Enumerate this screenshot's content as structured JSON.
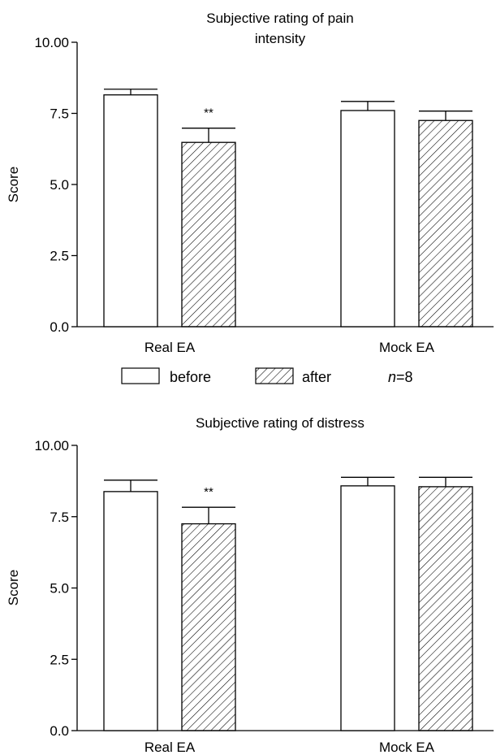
{
  "chart_data": [
    {
      "type": "bar",
      "title": "Subjective rating of pain intensity",
      "title_lines": [
        "Subjective rating of pain",
        "intensity"
      ],
      "ylabel": "Score",
      "xlabel": "",
      "ylim": [
        0,
        10
      ],
      "yticks": [
        "0.0",
        "2.5",
        "5.0",
        "7.5",
        "10.00"
      ],
      "ytick_values": [
        0,
        2.5,
        5,
        7.5,
        10
      ],
      "categories": [
        "Real EA",
        "Mock EA"
      ],
      "series": [
        {
          "name": "before",
          "values": [
            8.15,
            7.6
          ],
          "errors": [
            0.2,
            0.32
          ]
        },
        {
          "name": "after",
          "values": [
            6.48,
            7.25
          ],
          "errors": [
            0.5,
            0.33
          ]
        }
      ],
      "annotations": [
        {
          "category": "Real EA",
          "series": "after",
          "text": "**"
        }
      ]
    },
    {
      "type": "bar",
      "title": "Subjective rating of distress",
      "title_lines": [
        "Subjective rating of distress"
      ],
      "ylabel": "Score",
      "xlabel": "",
      "ylim": [
        0,
        10
      ],
      "yticks": [
        "0.0",
        "2.5",
        "5.0",
        "7.5",
        "10.00"
      ],
      "ytick_values": [
        0,
        2.5,
        5,
        7.5,
        10
      ],
      "categories": [
        "Real EA",
        "Mock EA"
      ],
      "series": [
        {
          "name": "before",
          "values": [
            8.38,
            8.58
          ],
          "errors": [
            0.4,
            0.3
          ]
        },
        {
          "name": "after",
          "values": [
            7.25,
            8.55
          ],
          "errors": [
            0.58,
            0.33
          ]
        }
      ],
      "annotations": [
        {
          "category": "Real EA",
          "series": "after",
          "text": "**"
        }
      ]
    }
  ],
  "legend": {
    "items": [
      {
        "label": "before",
        "pattern": "open"
      },
      {
        "label": "after",
        "pattern": "hatched"
      }
    ],
    "n_italic": "n",
    "n_value": "=8"
  },
  "colors": {
    "ink": "#000000",
    "bar_fill": "#ffffff",
    "background": "#ffffff"
  }
}
